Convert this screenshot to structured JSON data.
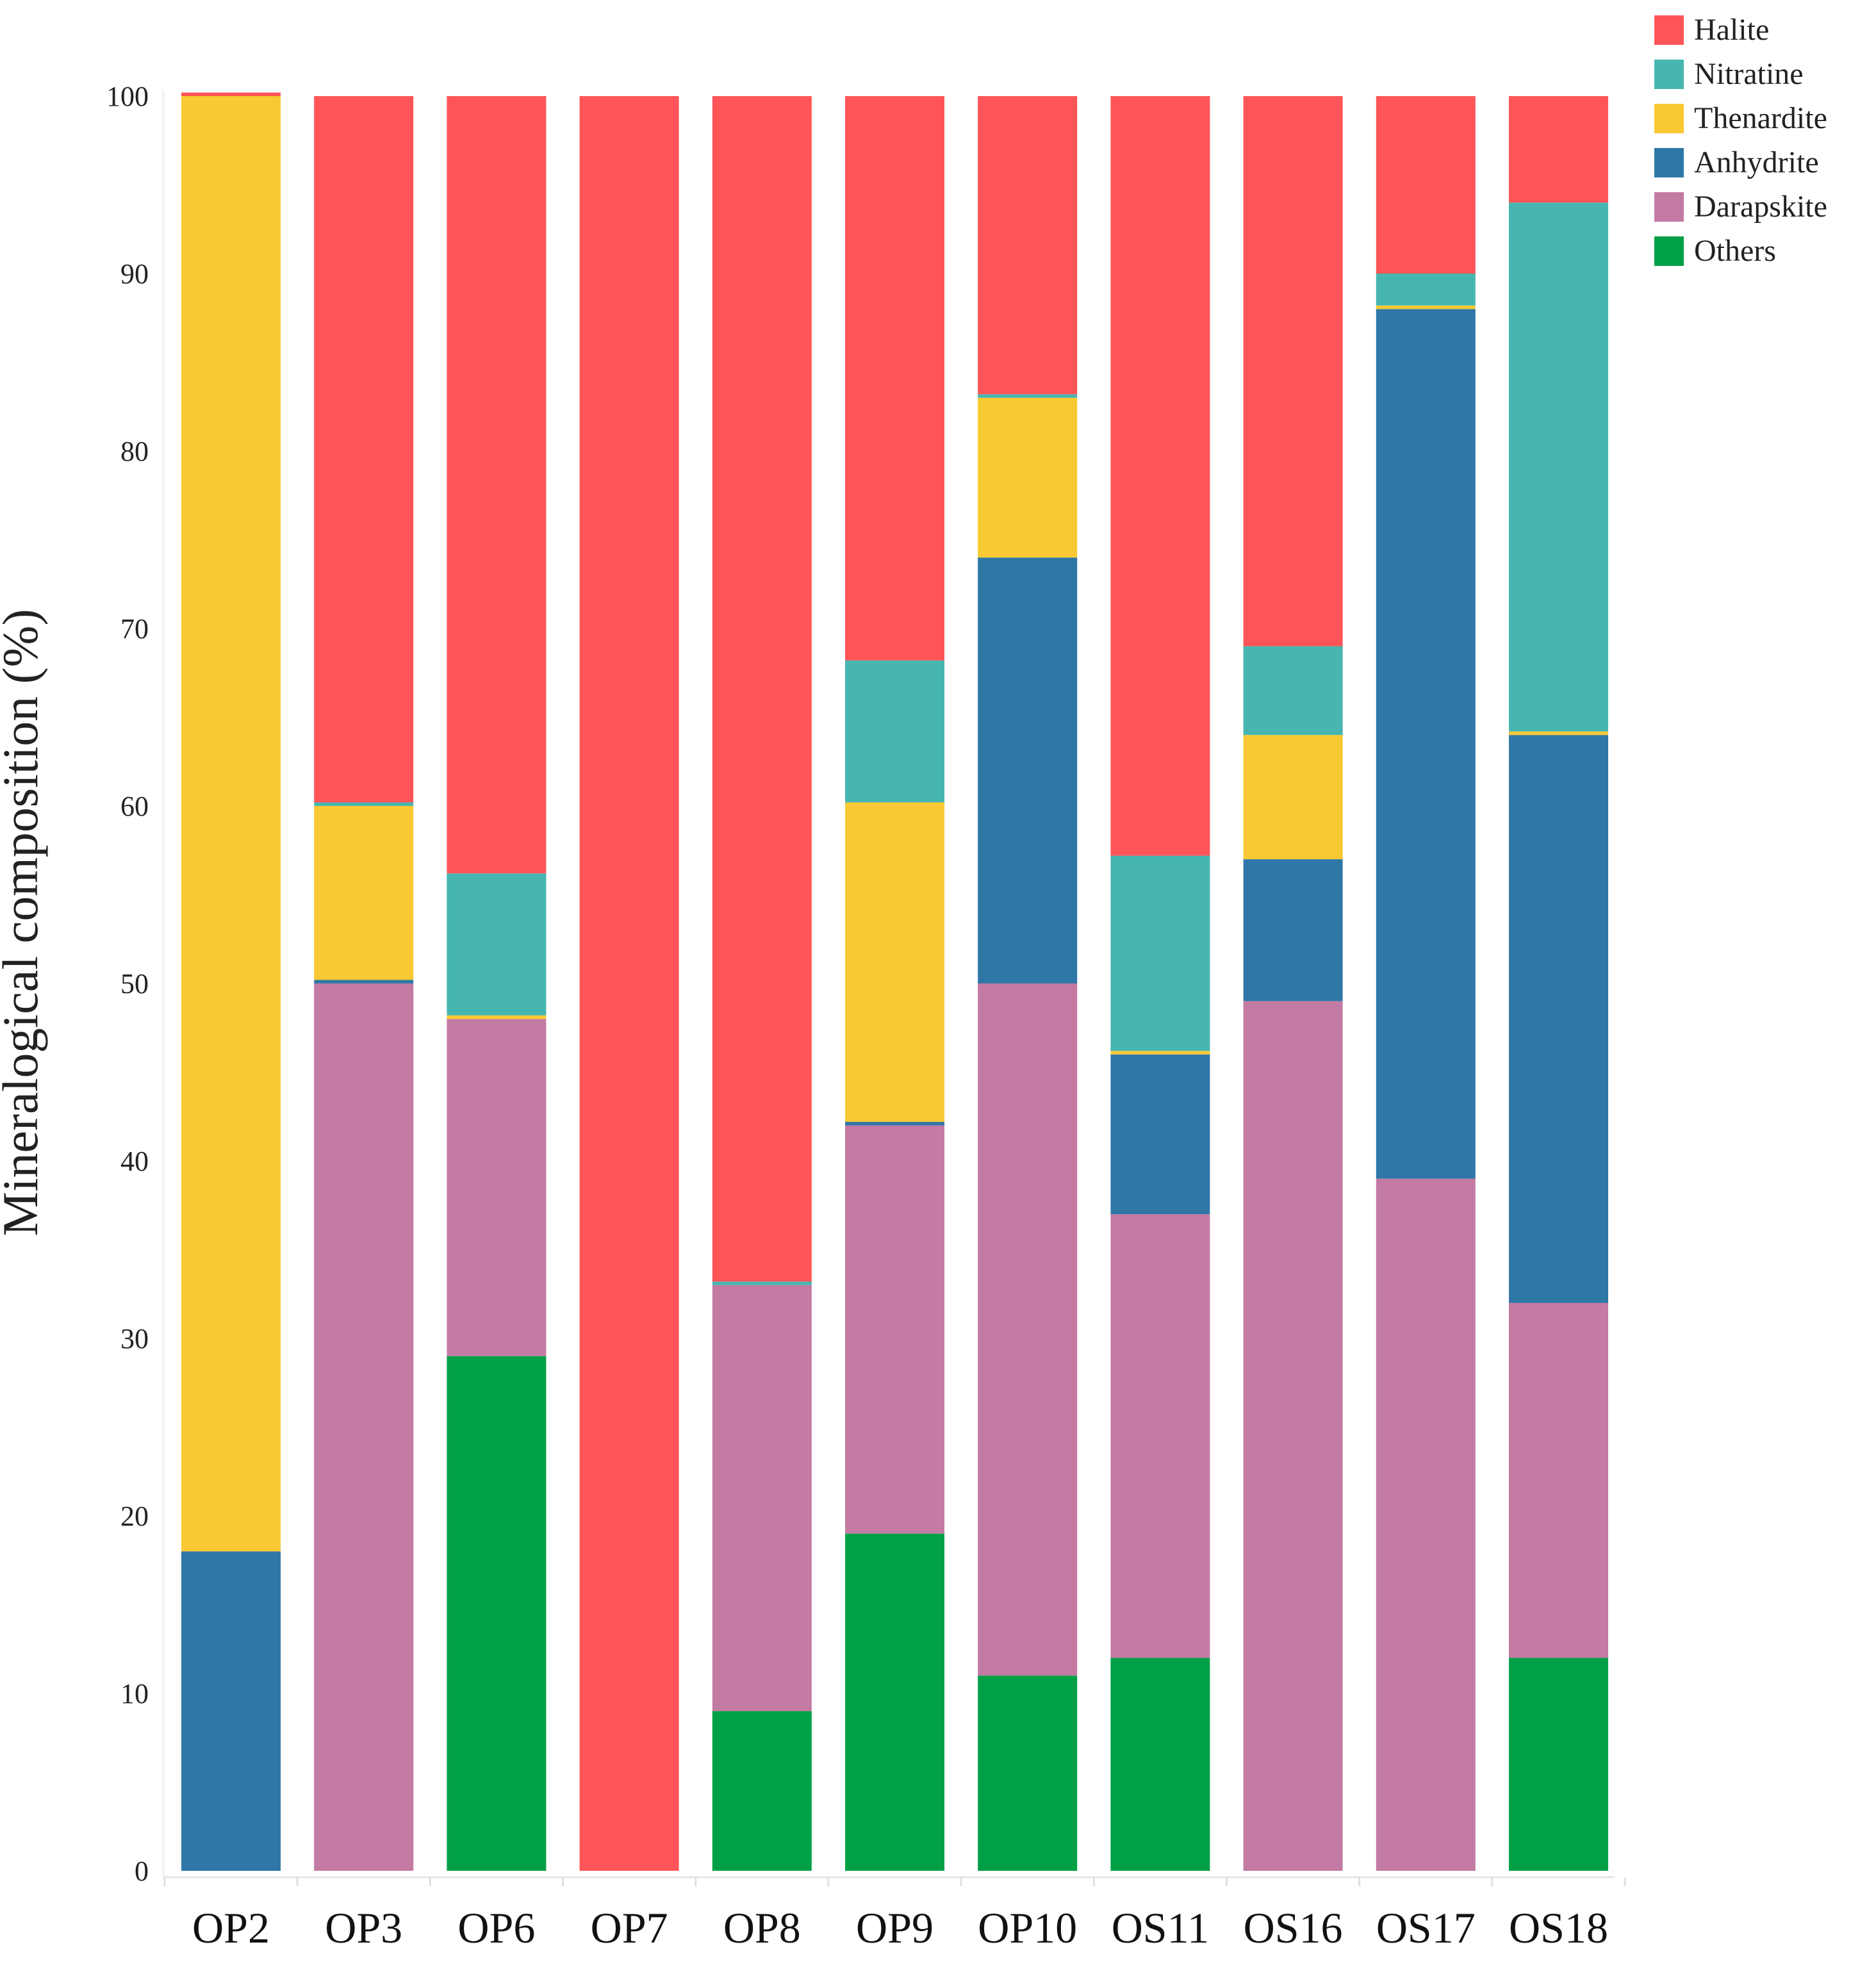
{
  "chart_data": {
    "type": "bar",
    "stacked": true,
    "title": "",
    "xlabel": "",
    "ylabel": "Mineralogical composition (%)",
    "ylim": [
      0,
      100
    ],
    "yticks": [
      "0",
      "10",
      "20",
      "30",
      "40",
      "50",
      "60",
      "70",
      "80",
      "90",
      "100"
    ],
    "grid": false,
    "legend_position": "top-right",
    "categories": [
      "OP2",
      "OP3",
      "OP6",
      "OP7",
      "OP8",
      "OP9",
      "OP10",
      "OS11",
      "OS16",
      "OS17",
      "OS18"
    ],
    "series": [
      {
        "name": "Others",
        "color": "#00a046",
        "values": [
          0,
          0,
          29,
          0,
          9,
          19,
          11,
          12,
          0,
          0,
          12
        ]
      },
      {
        "name": "Darapskite",
        "color": "#c37aa3",
        "values": [
          0,
          50,
          19,
          0,
          24,
          23,
          39,
          25,
          49,
          39,
          20
        ]
      },
      {
        "name": "Anhydrite",
        "color": "#2e77a7",
        "values": [
          18,
          0.2,
          0,
          0,
          0,
          0.2,
          24,
          9,
          8,
          49,
          32
        ]
      },
      {
        "name": "Thenardite",
        "color": "#f9c934",
        "values": [
          82,
          9.8,
          0.2,
          0,
          0,
          18,
          9,
          0.2,
          7,
          0.2,
          0.2
        ]
      },
      {
        "name": "Nitratine",
        "color": "#47b6b1",
        "values": [
          0,
          0.2,
          8,
          0,
          0.2,
          8,
          0.2,
          11,
          5,
          1.8,
          29.8
        ]
      },
      {
        "name": "Halite",
        "color": "#ff5558",
        "values": [
          0.2,
          39.8,
          43.8,
          100,
          66.8,
          31.8,
          16.8,
          42.8,
          31,
          10,
          6
        ]
      }
    ],
    "legend_order": [
      "Halite",
      "Nitratine",
      "Thenardite",
      "Anhydrite",
      "Darapskite",
      "Others"
    ]
  }
}
